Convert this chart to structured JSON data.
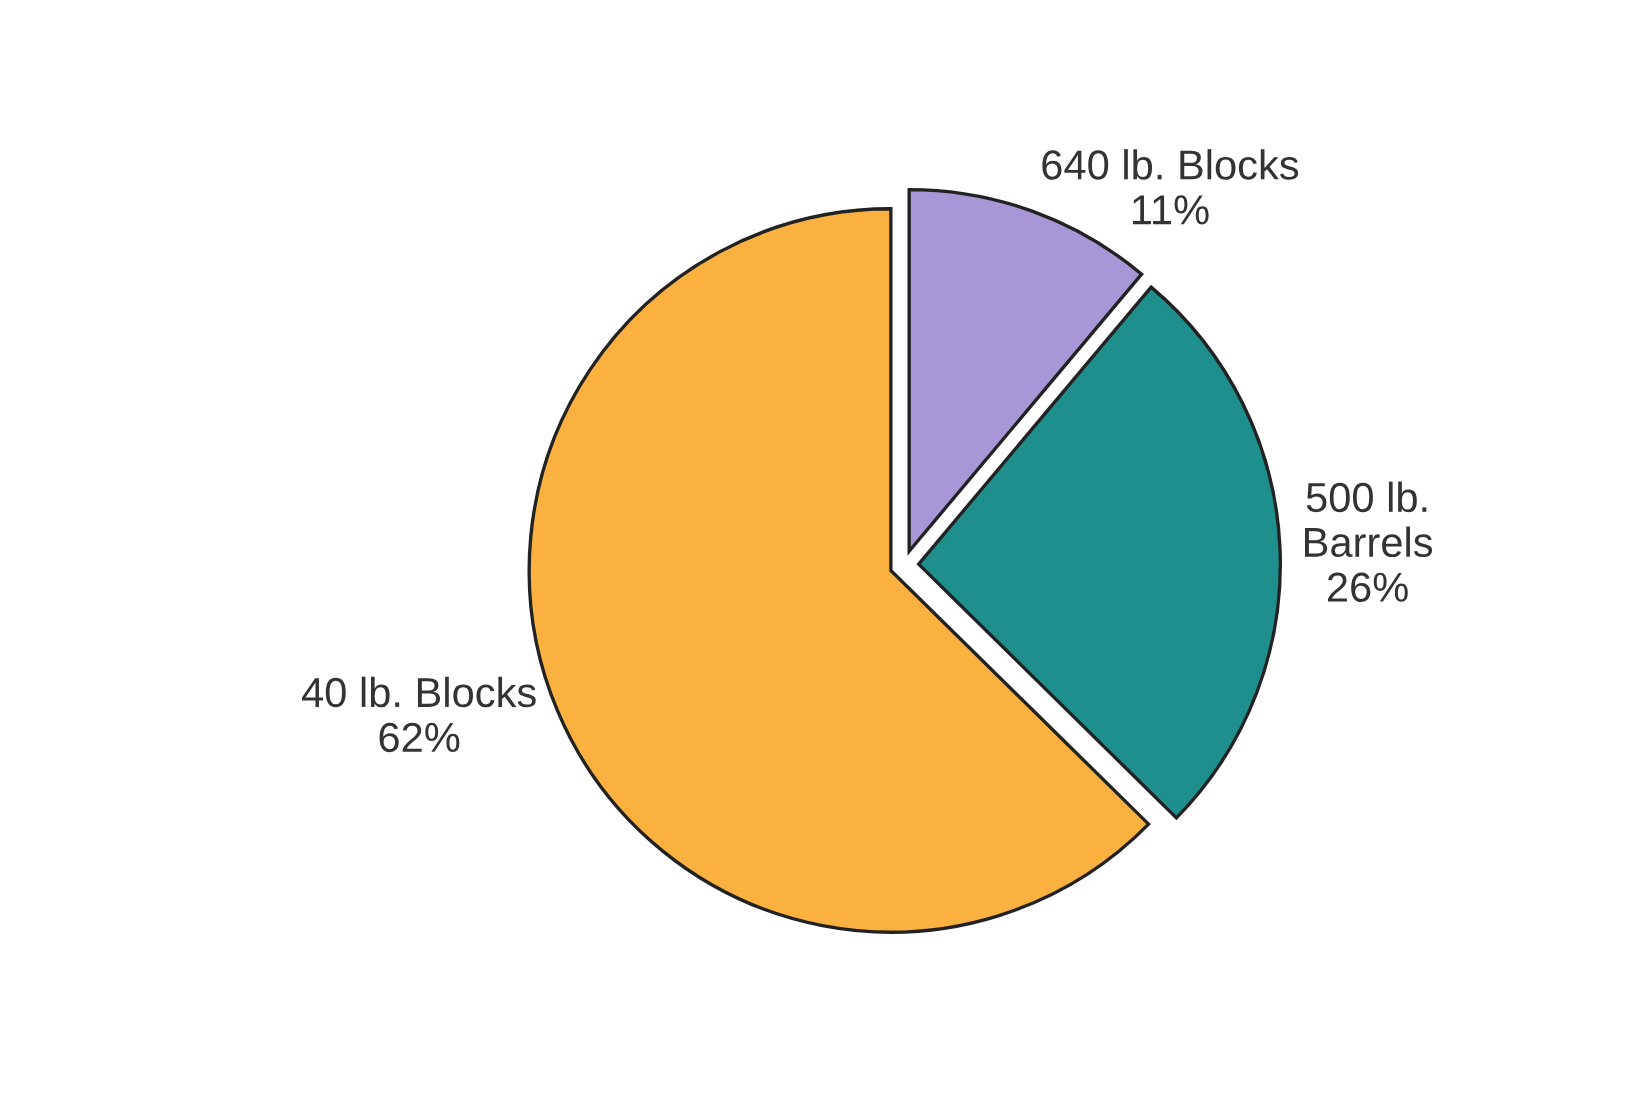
{
  "chart_data": {
    "type": "pie",
    "categories": [
      "640 lb. Blocks",
      "500 lb.\nBarrels",
      "40 lb. Blocks"
    ],
    "values": [
      11,
      26,
      62
    ],
    "colors": [
      "#a797d6",
      "#1e8f8c",
      "#fbb13f"
    ],
    "value_labels": [
      "11%",
      "26%",
      "62%"
    ]
  }
}
